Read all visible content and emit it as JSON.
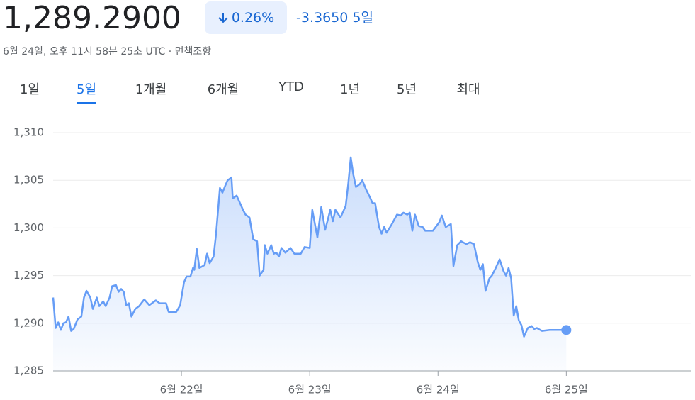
{
  "header": {
    "price": "1,289.2900",
    "change_percent": "0.26%",
    "change_value": "-3.3650",
    "period": "5일",
    "timestamp": "6월 24일, 오후 11시 58분 25초 UTC",
    "separator": "·",
    "disclaimer": "면책조항"
  },
  "tabs": {
    "items": [
      "1일",
      "5일",
      "1개월",
      "6개월",
      "YTD",
      "1년",
      "5년",
      "최대"
    ],
    "selected": 1
  },
  "chart_data": {
    "type": "line",
    "x": [
      21.0,
      21.02,
      21.04,
      21.06,
      21.08,
      21.1,
      21.12,
      21.14,
      21.16,
      21.19,
      21.22,
      21.24,
      21.26,
      21.29,
      21.31,
      21.34,
      21.36,
      21.39,
      21.41,
      21.44,
      21.46,
      21.49,
      21.51,
      21.53,
      21.55,
      21.57,
      21.59,
      21.61,
      21.64,
      21.67,
      21.71,
      21.75,
      21.8,
      21.83,
      21.88,
      21.9,
      21.96,
      21.99,
      22.02,
      22.04,
      22.07,
      22.09,
      22.1,
      22.12,
      22.14,
      22.18,
      22.2,
      22.22,
      22.25,
      22.27,
      22.3,
      22.32,
      22.34,
      22.36,
      22.39,
      22.4,
      22.43,
      22.45,
      22.48,
      22.5,
      22.53,
      22.56,
      22.59,
      22.61,
      22.64,
      22.65,
      22.67,
      22.7,
      22.72,
      22.74,
      22.76,
      22.78,
      22.81,
      22.85,
      22.88,
      22.93,
      22.96,
      23.0,
      23.02,
      23.06,
      23.09,
      23.12,
      23.14,
      23.16,
      23.18,
      23.2,
      23.24,
      23.28,
      23.3,
      23.32,
      23.34,
      23.36,
      23.39,
      23.41,
      23.44,
      23.47,
      23.49,
      23.51,
      23.54,
      23.56,
      23.58,
      23.6,
      23.64,
      23.68,
      23.71,
      23.73,
      23.76,
      23.78,
      23.8,
      23.82,
      23.85,
      23.88,
      23.9,
      23.96,
      24.01,
      24.03,
      24.06,
      24.1,
      24.12,
      24.15,
      24.18,
      24.22,
      24.25,
      24.28,
      24.31,
      24.33,
      24.35,
      24.37,
      24.4,
      24.42,
      24.45,
      24.48,
      24.51,
      24.53,
      24.55,
      24.57,
      24.59,
      24.61,
      24.63,
      24.65,
      24.67,
      24.7,
      24.73,
      24.75,
      24.77,
      24.81,
      24.87,
      25.0
    ],
    "series": [
      {
        "color": "#669df6",
        "values": [
          1292.7,
          1289.5,
          1290.1,
          1289.3,
          1290.0,
          1290.1,
          1290.7,
          1289.2,
          1289.4,
          1290.4,
          1290.7,
          1292.7,
          1293.4,
          1292.7,
          1291.5,
          1292.7,
          1291.8,
          1292.3,
          1291.8,
          1292.7,
          1293.9,
          1294.0,
          1293.3,
          1293.6,
          1293.3,
          1291.9,
          1292.1,
          1290.7,
          1291.5,
          1291.8,
          1292.5,
          1291.9,
          1292.4,
          1292.1,
          1292.1,
          1291.2,
          1291.2,
          1291.9,
          1294.3,
          1294.9,
          1294.9,
          1295.8,
          1295.6,
          1297.8,
          1295.8,
          1296.1,
          1297.3,
          1296.3,
          1297.0,
          1299.4,
          1304.2,
          1303.7,
          1304.4,
          1305.0,
          1305.3,
          1303.1,
          1303.4,
          1302.8,
          1301.9,
          1301.4,
          1301.1,
          1298.8,
          1298.6,
          1295.0,
          1295.6,
          1298.2,
          1297.3,
          1298.2,
          1297.3,
          1297.4,
          1297.0,
          1297.9,
          1297.4,
          1297.9,
          1297.3,
          1297.3,
          1298.0,
          1297.9,
          1301.9,
          1299.0,
          1302.2,
          1299.8,
          1300.8,
          1301.9,
          1300.7,
          1301.9,
          1301.1,
          1302.3,
          1304.6,
          1307.4,
          1305.6,
          1304.3,
          1304.6,
          1305.0,
          1304.0,
          1303.2,
          1302.6,
          1302.6,
          1300.1,
          1299.4,
          1300.1,
          1299.5,
          1300.4,
          1301.4,
          1301.3,
          1301.6,
          1301.4,
          1301.6,
          1299.7,
          1301.4,
          1300.2,
          1300.1,
          1299.7,
          1299.7,
          1300.6,
          1301.3,
          1300.1,
          1300.4,
          1296.0,
          1298.2,
          1298.6,
          1298.3,
          1298.5,
          1298.3,
          1296.4,
          1295.6,
          1296.2,
          1293.4,
          1294.7,
          1295.0,
          1295.8,
          1296.7,
          1295.5,
          1295.0,
          1295.8,
          1294.7,
          1290.8,
          1291.8,
          1290.3,
          1289.8,
          1288.6,
          1289.5,
          1289.7,
          1289.4,
          1289.5,
          1289.2,
          1289.3,
          1289.29
        ]
      }
    ],
    "xlim": [
      21,
      25.97
    ],
    "xticks": [
      {
        "value": 22,
        "label": "6월 22일"
      },
      {
        "value": 23,
        "label": "6월 23일"
      },
      {
        "value": 24,
        "label": "6월 24일"
      },
      {
        "value": 25,
        "label": "6월 25일"
      }
    ],
    "ylim": [
      1285,
      1310
    ],
    "yticks": [
      {
        "value": 1285,
        "label": "1,285"
      },
      {
        "value": 1290,
        "label": "1,290"
      },
      {
        "value": 1295,
        "label": "1,295"
      },
      {
        "value": 1300,
        "label": "1,300"
      },
      {
        "value": 1305,
        "label": "1,305"
      },
      {
        "value": 1310,
        "label": "1,310"
      }
    ],
    "grid": true
  }
}
